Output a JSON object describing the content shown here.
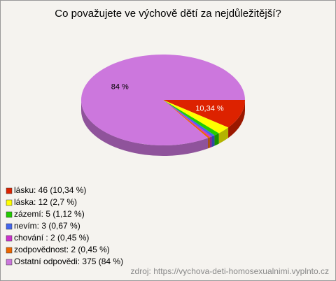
{
  "chart_data": {
    "type": "pie",
    "title": "Co považujete ve výchově dětí za nejdůležitější?",
    "categories": [
      "lásku: 46 (10,34 %)",
      "láska: 12 (2,7 %)",
      "zázemí: 5 (1,12 %)",
      "nevím: 3 (0,67 %)",
      "chování : 2 (0,45 %)",
      "zodpovědnost: 2 (0,45 %)",
      "Ostatní odpovědi: 375 (84 %)"
    ],
    "values": [
      10.34,
      2.7,
      1.12,
      0.67,
      0.45,
      0.45,
      84
    ],
    "value_labels": [
      "10,34 %",
      null,
      null,
      null,
      null,
      null,
      "84 %"
    ],
    "colors": [
      "#dd2200",
      "#ffff00",
      "#22cc00",
      "#4466ee",
      "#cc33cc",
      "#ee6600",
      "#cc77dd"
    ],
    "source": "zdroj: https://vychova-deti-homosexualnimi.vyplnto.cz"
  }
}
